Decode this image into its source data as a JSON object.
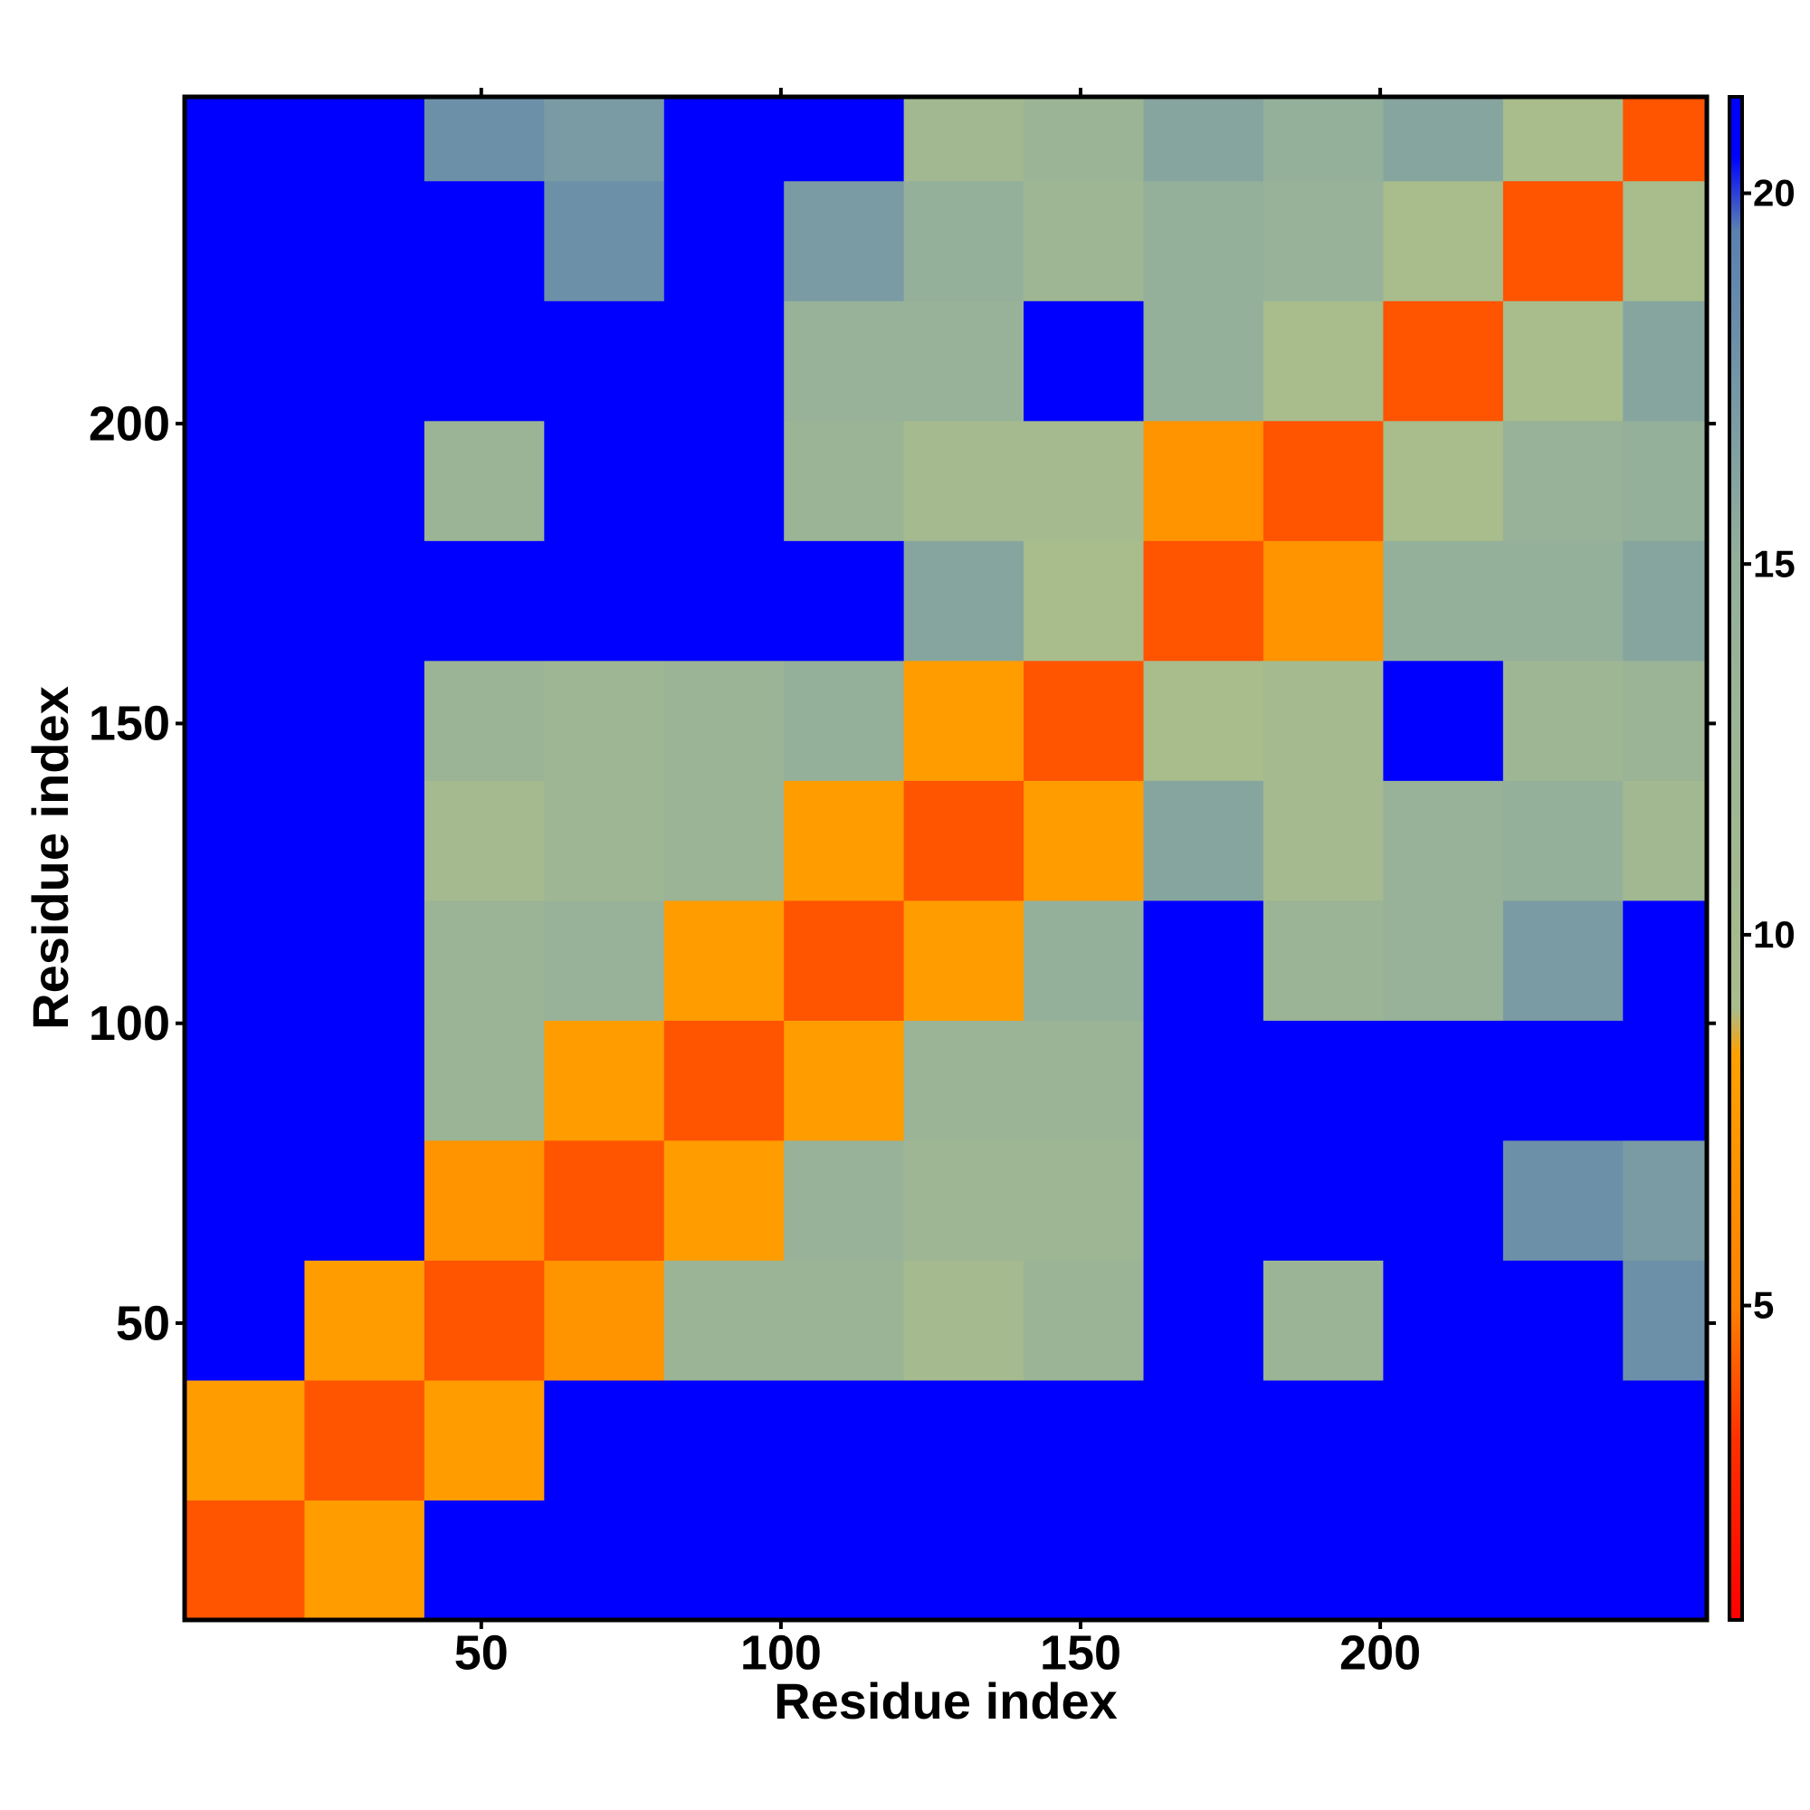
{
  "chart_data": {
    "type": "heatmap",
    "x_label": "Residue index",
    "y_label": "Residue index",
    "xlim": [
      0.5,
      254.5
    ],
    "ylim": [
      0.5,
      254.5
    ],
    "xticks": [
      50,
      100,
      150,
      200
    ],
    "yticks": [
      50,
      100,
      150,
      200
    ],
    "x_edges": [
      0.5,
      20.5,
      40.5,
      60.5,
      80.5,
      100.5,
      120.5,
      140.5,
      160.5,
      180.5,
      200.5,
      220.5,
      240.5,
      254.5
    ],
    "y_edges": [
      0.5,
      20.5,
      40.5,
      60.5,
      80.5,
      100.5,
      120.5,
      140.5,
      160.5,
      180.5,
      200.5,
      220.5,
      240.5,
      254.5
    ],
    "z": [
      [
        4,
        8,
        21,
        21,
        21,
        21,
        21,
        21,
        21,
        21,
        21,
        21,
        21
      ],
      [
        8,
        4,
        8,
        21,
        21,
        21,
        21,
        21,
        21,
        21,
        21,
        21,
        21
      ],
      [
        21,
        8,
        4,
        7,
        13,
        13,
        10,
        13,
        21,
        13,
        21,
        21,
        18
      ],
      [
        21,
        21,
        7,
        4,
        8,
        14,
        12,
        12,
        21,
        21,
        21,
        18,
        17
      ],
      [
        21,
        21,
        13,
        8,
        4,
        8,
        13,
        13,
        21,
        21,
        21,
        21,
        21
      ],
      [
        21,
        21,
        13,
        14,
        8,
        4,
        8,
        15,
        21,
        13,
        14,
        17,
        21
      ],
      [
        21,
        21,
        10,
        12,
        13,
        8,
        4,
        8,
        16,
        10,
        14,
        15,
        11
      ],
      [
        21,
        21,
        13,
        12,
        13,
        15,
        8,
        4,
        9,
        10,
        21,
        12,
        13
      ],
      [
        21,
        21,
        21,
        21,
        21,
        21,
        16,
        9,
        4,
        7,
        15,
        15,
        16
      ],
      [
        21,
        21,
        13,
        21,
        21,
        13,
        10,
        10,
        7,
        4,
        9,
        14,
        15
      ],
      [
        21,
        21,
        21,
        21,
        21,
        14,
        14,
        21,
        15,
        9,
        4,
        9,
        16
      ],
      [
        21,
        21,
        21,
        18,
        21,
        17,
        15,
        12,
        15,
        14,
        9,
        4,
        9
      ],
      [
        21,
        21,
        18,
        17,
        21,
        21,
        11,
        13,
        16,
        15,
        16,
        9,
        4
      ]
    ],
    "clim": [
      0.76,
      21.3
    ],
    "cticks": [
      5,
      10,
      15,
      20
    ],
    "colorscale": [
      [
        0.76,
        "#ff0000"
      ],
      [
        3.2,
        "#ff3000"
      ],
      [
        5,
        "#ff8000"
      ],
      [
        8.4,
        "#ffa000"
      ],
      [
        9,
        "#a8bc8c"
      ],
      [
        15,
        "#94b09a"
      ],
      [
        19.5,
        "#5a80b0"
      ],
      [
        20.5,
        "#0000ff"
      ]
    ]
  }
}
